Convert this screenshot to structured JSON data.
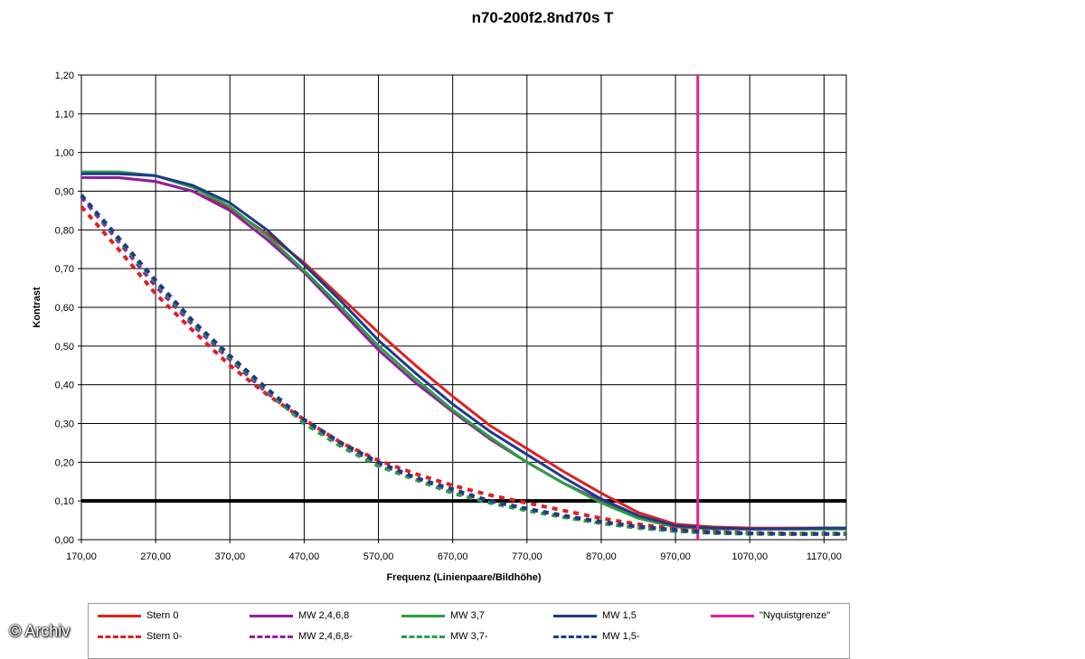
{
  "chart_data": {
    "type": "line",
    "title": "n70-200f2.8nd70s T",
    "xlabel": "Frequenz (Linienpaare/Bildhöhe)",
    "ylabel": "Kontrast",
    "xlim": [
      170,
      1200
    ],
    "ylim": [
      0,
      1.2
    ],
    "xticks": [
      "170,00",
      "270,00",
      "370,00",
      "470,00",
      "570,00",
      "670,00",
      "770,00",
      "870,00",
      "970,00",
      "1070,00",
      "1170,00"
    ],
    "xtick_values": [
      170,
      270,
      370,
      470,
      570,
      670,
      770,
      870,
      970,
      1070,
      1170
    ],
    "yticks": [
      "0,00",
      "0,10",
      "0,20",
      "0,30",
      "0,40",
      "0,50",
      "0,60",
      "0,70",
      "0,80",
      "0,90",
      "1,00",
      "1,10",
      "1,20"
    ],
    "ytick_values": [
      0,
      0.1,
      0.2,
      0.3,
      0.4,
      0.5,
      0.6,
      0.7,
      0.8,
      0.9,
      1.0,
      1.1,
      1.2
    ],
    "grid": true,
    "legend_position": "bottom",
    "x": [
      170,
      220,
      270,
      320,
      370,
      420,
      470,
      520,
      570,
      620,
      670,
      720,
      770,
      820,
      870,
      920,
      970,
      1020,
      1070,
      1120,
      1170,
      1200
    ],
    "series": [
      {
        "name": "Stern 0",
        "color": "#e02020",
        "dash": false,
        "values": [
          0.935,
          0.935,
          0.925,
          0.9,
          0.855,
          0.79,
          0.715,
          0.625,
          0.535,
          0.45,
          0.37,
          0.295,
          0.235,
          0.175,
          0.12,
          0.07,
          0.04,
          0.033,
          0.03,
          0.03,
          0.03,
          0.03
        ]
      },
      {
        "name": "MW 2,4,6,8",
        "color": "#8e1f9e",
        "dash": false,
        "values": [
          0.935,
          0.935,
          0.925,
          0.9,
          0.85,
          0.775,
          0.69,
          0.59,
          0.49,
          0.405,
          0.33,
          0.26,
          0.2,
          0.145,
          0.1,
          0.06,
          0.035,
          0.03,
          0.028,
          0.028,
          0.028,
          0.028
        ]
      },
      {
        "name": "MW 3,7",
        "color": "#2aa040",
        "dash": false,
        "values": [
          0.95,
          0.95,
          0.94,
          0.91,
          0.86,
          0.785,
          0.695,
          0.6,
          0.5,
          0.415,
          0.335,
          0.265,
          0.2,
          0.145,
          0.095,
          0.055,
          0.033,
          0.028,
          0.027,
          0.027,
          0.027,
          0.027
        ]
      },
      {
        "name": "MW 1,5",
        "color": "#1f3a8a",
        "dash": false,
        "values": [
          0.945,
          0.945,
          0.94,
          0.915,
          0.87,
          0.8,
          0.71,
          0.615,
          0.515,
          0.43,
          0.35,
          0.28,
          0.22,
          0.16,
          0.105,
          0.062,
          0.036,
          0.03,
          0.028,
          0.028,
          0.03,
          0.03
        ]
      },
      {
        "name": "\"Nyquistgrenze\"",
        "color": "#e0209a",
        "dash": false,
        "vertical_x": 1000
      },
      {
        "name": "Stern 0-",
        "color": "#e02020",
        "dash": true,
        "values": [
          0.86,
          0.75,
          0.635,
          0.54,
          0.45,
          0.375,
          0.31,
          0.25,
          0.205,
          0.17,
          0.14,
          0.115,
          0.095,
          0.075,
          0.055,
          0.04,
          0.028,
          0.02,
          0.018,
          0.016,
          0.016,
          0.016
        ]
      },
      {
        "name": "MW 2,4,6,8-",
        "color": "#8e1f9e",
        "dash": true,
        "values": [
          0.885,
          0.77,
          0.655,
          0.555,
          0.465,
          0.38,
          0.305,
          0.245,
          0.195,
          0.16,
          0.125,
          0.1,
          0.08,
          0.06,
          0.045,
          0.033,
          0.024,
          0.018,
          0.016,
          0.015,
          0.015,
          0.015
        ]
      },
      {
        "name": "MW 3,7-",
        "color": "#2aa040",
        "dash": true,
        "values": [
          0.89,
          0.775,
          0.665,
          0.56,
          0.47,
          0.385,
          0.3,
          0.24,
          0.19,
          0.155,
          0.12,
          0.095,
          0.075,
          0.058,
          0.042,
          0.03,
          0.022,
          0.017,
          0.015,
          0.014,
          0.014,
          0.014
        ]
      },
      {
        "name": "MW 1,5-",
        "color": "#1f3a8a",
        "dash": true,
        "values": [
          0.89,
          0.78,
          0.67,
          0.565,
          0.475,
          0.39,
          0.31,
          0.25,
          0.2,
          0.16,
          0.13,
          0.1,
          0.08,
          0.062,
          0.046,
          0.034,
          0.025,
          0.019,
          0.016,
          0.015,
          0.015,
          0.015
        ]
      }
    ],
    "reference_line": {
      "y": 0.1,
      "color": "#000000"
    }
  },
  "watermark": {
    "text": "Archiv",
    "symbol": "©"
  }
}
